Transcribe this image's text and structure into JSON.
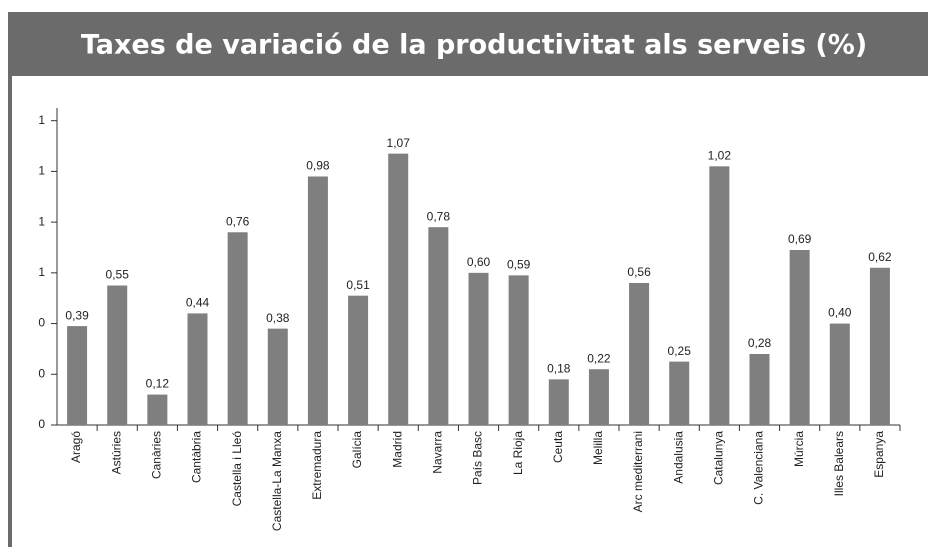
{
  "chart_data": {
    "type": "bar",
    "title": "Taxes de variació de la productivitat als serveis (%)",
    "categories": [
      "Aragó",
      "Astúries",
      "Canàries",
      "Cantàbria",
      "Castella i Lleó",
      "Castella-La Manxa",
      "Extremadura",
      "Galícia",
      "Madrid",
      "Navarra",
      "País Basc",
      "La Rioja",
      "Ceuta",
      "Melilla",
      "Arc mediterrani",
      "Andalusia",
      "Catalunya",
      "C. Valenciana",
      "Múrcia",
      "Illes Balears",
      "Espanya"
    ],
    "values": [
      0.39,
      0.55,
      0.12,
      0.44,
      0.76,
      0.38,
      0.98,
      0.51,
      1.07,
      0.78,
      0.6,
      0.59,
      0.18,
      0.22,
      0.56,
      0.25,
      1.02,
      0.28,
      0.69,
      0.4,
      0.62
    ],
    "value_labels": [
      "0,39",
      "0,55",
      "0,12",
      "0,44",
      "0,76",
      "0,38",
      "0,98",
      "0,51",
      "1,07",
      "0,78",
      "0,60",
      "0,59",
      "0,18",
      "0,22",
      "0,56",
      "0,25",
      "1,02",
      "0,28",
      "0,69",
      "0,40",
      "0,62"
    ],
    "color": "#7f7f7f",
    "ylim": [
      0,
      1.25
    ],
    "yticks": [
      0,
      {
        "value": 0.2,
        "label": "0"
      },
      {
        "value": 0.4,
        "label": "0"
      },
      {
        "value": 0.6,
        "label": "1"
      },
      {
        "value": 0.8,
        "label": "1"
      },
      1,
      {
        "value": 1.2,
        "label": "1"
      }
    ],
    "grid": false
  }
}
